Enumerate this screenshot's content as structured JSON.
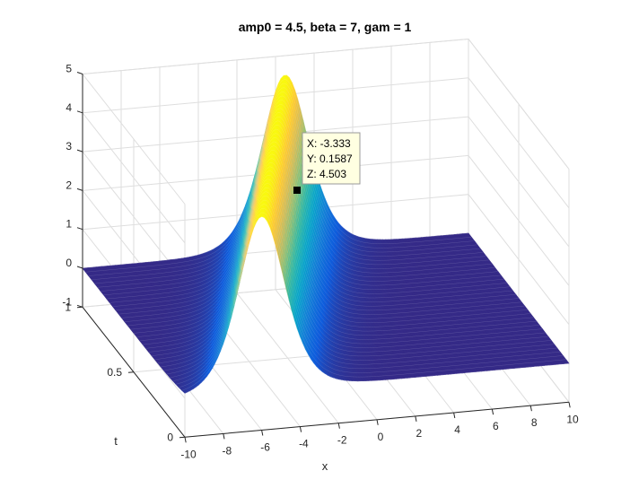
{
  "chart_data": {
    "type": "surface",
    "title": "amp0 = 4.5, beta = 7, gam = 1",
    "xlabel": "x",
    "ylabel": "t",
    "zlabel": "",
    "xlim": [
      -10,
      10
    ],
    "ylim": [
      0,
      1
    ],
    "zlim": [
      -1,
      5
    ],
    "xticks": [
      -10,
      -8,
      -6,
      -4,
      -2,
      0,
      2,
      4,
      6,
      8,
      10
    ],
    "yticks": [
      0,
      0.5,
      1
    ],
    "zticks": [
      -1,
      0,
      1,
      2,
      3,
      4,
      5
    ],
    "grid": true,
    "colormap": "parula",
    "function": "soliton z = amp0 * sech^2(sqrt(amp0/12) * (x - x0(t))), peak moving with t",
    "amp0": 4.5,
    "peak_x_at_t0": -6.0,
    "peak_x_at_t1": 0.5,
    "datatip": {
      "x_label": "X: -3.333",
      "y_label": "Y: 0.1587",
      "z_label": "Z: 4.503",
      "x": -3.333,
      "y": 0.1587,
      "z": 4.503
    },
    "colors": {
      "parula": [
        "#352a87",
        "#0f5cdd",
        "#1481d6",
        "#06a4ca",
        "#2eb7a4",
        "#87bf77",
        "#d1bb59",
        "#fec832",
        "#f9fb0e"
      ]
    }
  }
}
